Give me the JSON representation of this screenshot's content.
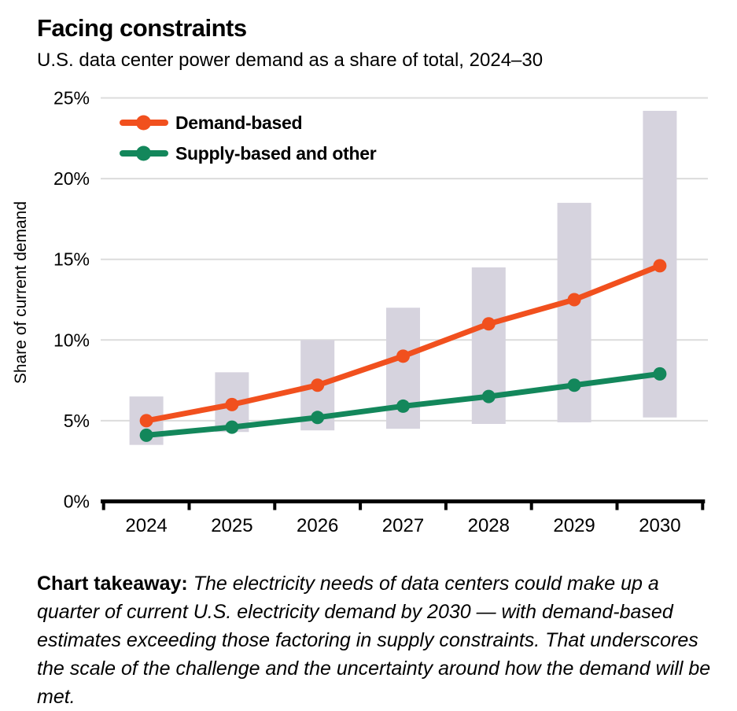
{
  "header": {
    "title": "Facing constraints",
    "subtitle": "U.S. data center power demand as a share of total, 2024–30"
  },
  "chart_data": {
    "type": "line",
    "title": "Facing constraints",
    "subtitle": "U.S. data center power demand as a share of total, 2024–30",
    "categories": [
      "2024",
      "2025",
      "2026",
      "2027",
      "2028",
      "2029",
      "2030"
    ],
    "series": [
      {
        "name": "Demand-based",
        "color": "#F1501E",
        "values": [
          5.0,
          6.0,
          7.2,
          9.0,
          11.0,
          12.5,
          14.6
        ]
      },
      {
        "name": "Supply-based and other",
        "color": "#13875B",
        "values": [
          4.1,
          4.6,
          5.2,
          5.9,
          6.5,
          7.2,
          7.9
        ]
      }
    ],
    "range_bars": {
      "color": "#D6D3DE",
      "low": [
        3.5,
        4.3,
        4.4,
        4.5,
        4.8,
        4.9,
        5.2
      ],
      "high": [
        6.5,
        8.0,
        10.0,
        12.0,
        14.5,
        18.5,
        24.2
      ]
    },
    "xlabel": "",
    "ylabel": "Share of current demand",
    "y_ticks": [
      0,
      5,
      10,
      15,
      20,
      25
    ],
    "y_tick_format": "{v}%",
    "ylim": [
      0,
      25.5
    ],
    "grid": true,
    "legend_position": "top-left",
    "gridline_color": "#DCDCDC",
    "axis_color": "#000000"
  },
  "takeaway": {
    "label": "Chart takeaway:",
    "body": "The electricity needs of data centers could make up a quarter of current U.S. electricity demand by 2030 — with demand-based estimates exceeding those factoring in supply constraints. That underscores the scale of the challenge and the uncertainty around how the demand will be met."
  }
}
